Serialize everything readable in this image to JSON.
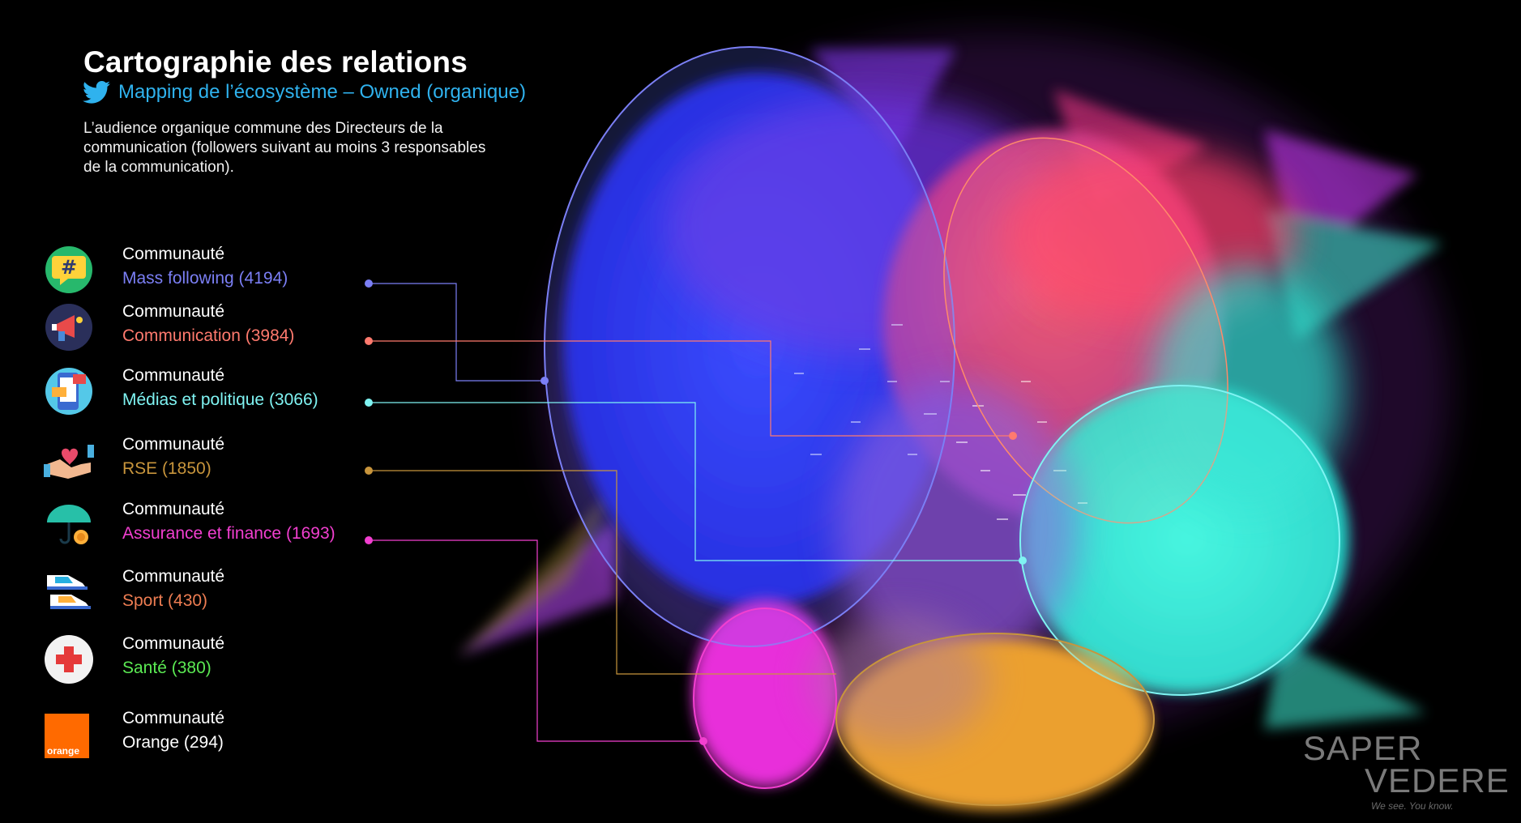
{
  "header": {
    "title": "Cartographie des relations",
    "subtitle": "Mapping de l’écosystème – Owned (organique)",
    "description": "L’audience organique commune des Directeurs de la communication (followers suivant au moins 3 responsables de la communication)."
  },
  "communities": [
    {
      "prefix": "Communauté",
      "name": "Mass following (4194)",
      "color": "#7b7ff5",
      "icon": "hashtag-chat-icon"
    },
    {
      "prefix": "Communauté",
      "name": "Communication (3984)",
      "color": "#ff7a6e",
      "icon": "megaphone-icon"
    },
    {
      "prefix": "Communauté",
      "name": "Médias et politique (3066)",
      "color": "#7ff3f2",
      "icon": "media-phone-icon"
    },
    {
      "prefix": "Communauté",
      "name": "RSE (1850)",
      "color": "#c8953c",
      "icon": "heart-hands-icon"
    },
    {
      "prefix": "Communauté",
      "name": "Assurance et finance (1693)",
      "color": "#f23fd0",
      "icon": "umbrella-coin-icon"
    },
    {
      "prefix": "Communauté",
      "name": "Sport (430)",
      "color": "#ee7d52",
      "icon": "sneakers-icon"
    },
    {
      "prefix": "Communauté",
      "name": "Santé (380)",
      "color": "#5bea53",
      "icon": "red-cross-icon"
    },
    {
      "prefix": "Communauté",
      "name": "Orange (294)",
      "color": "#ffffff",
      "icon": "orange-logo-icon"
    }
  ],
  "orange_logo_text": "orange",
  "brand": {
    "line1": "SAPER",
    "line2": "VEDERE",
    "tagline": "We see. You know."
  }
}
